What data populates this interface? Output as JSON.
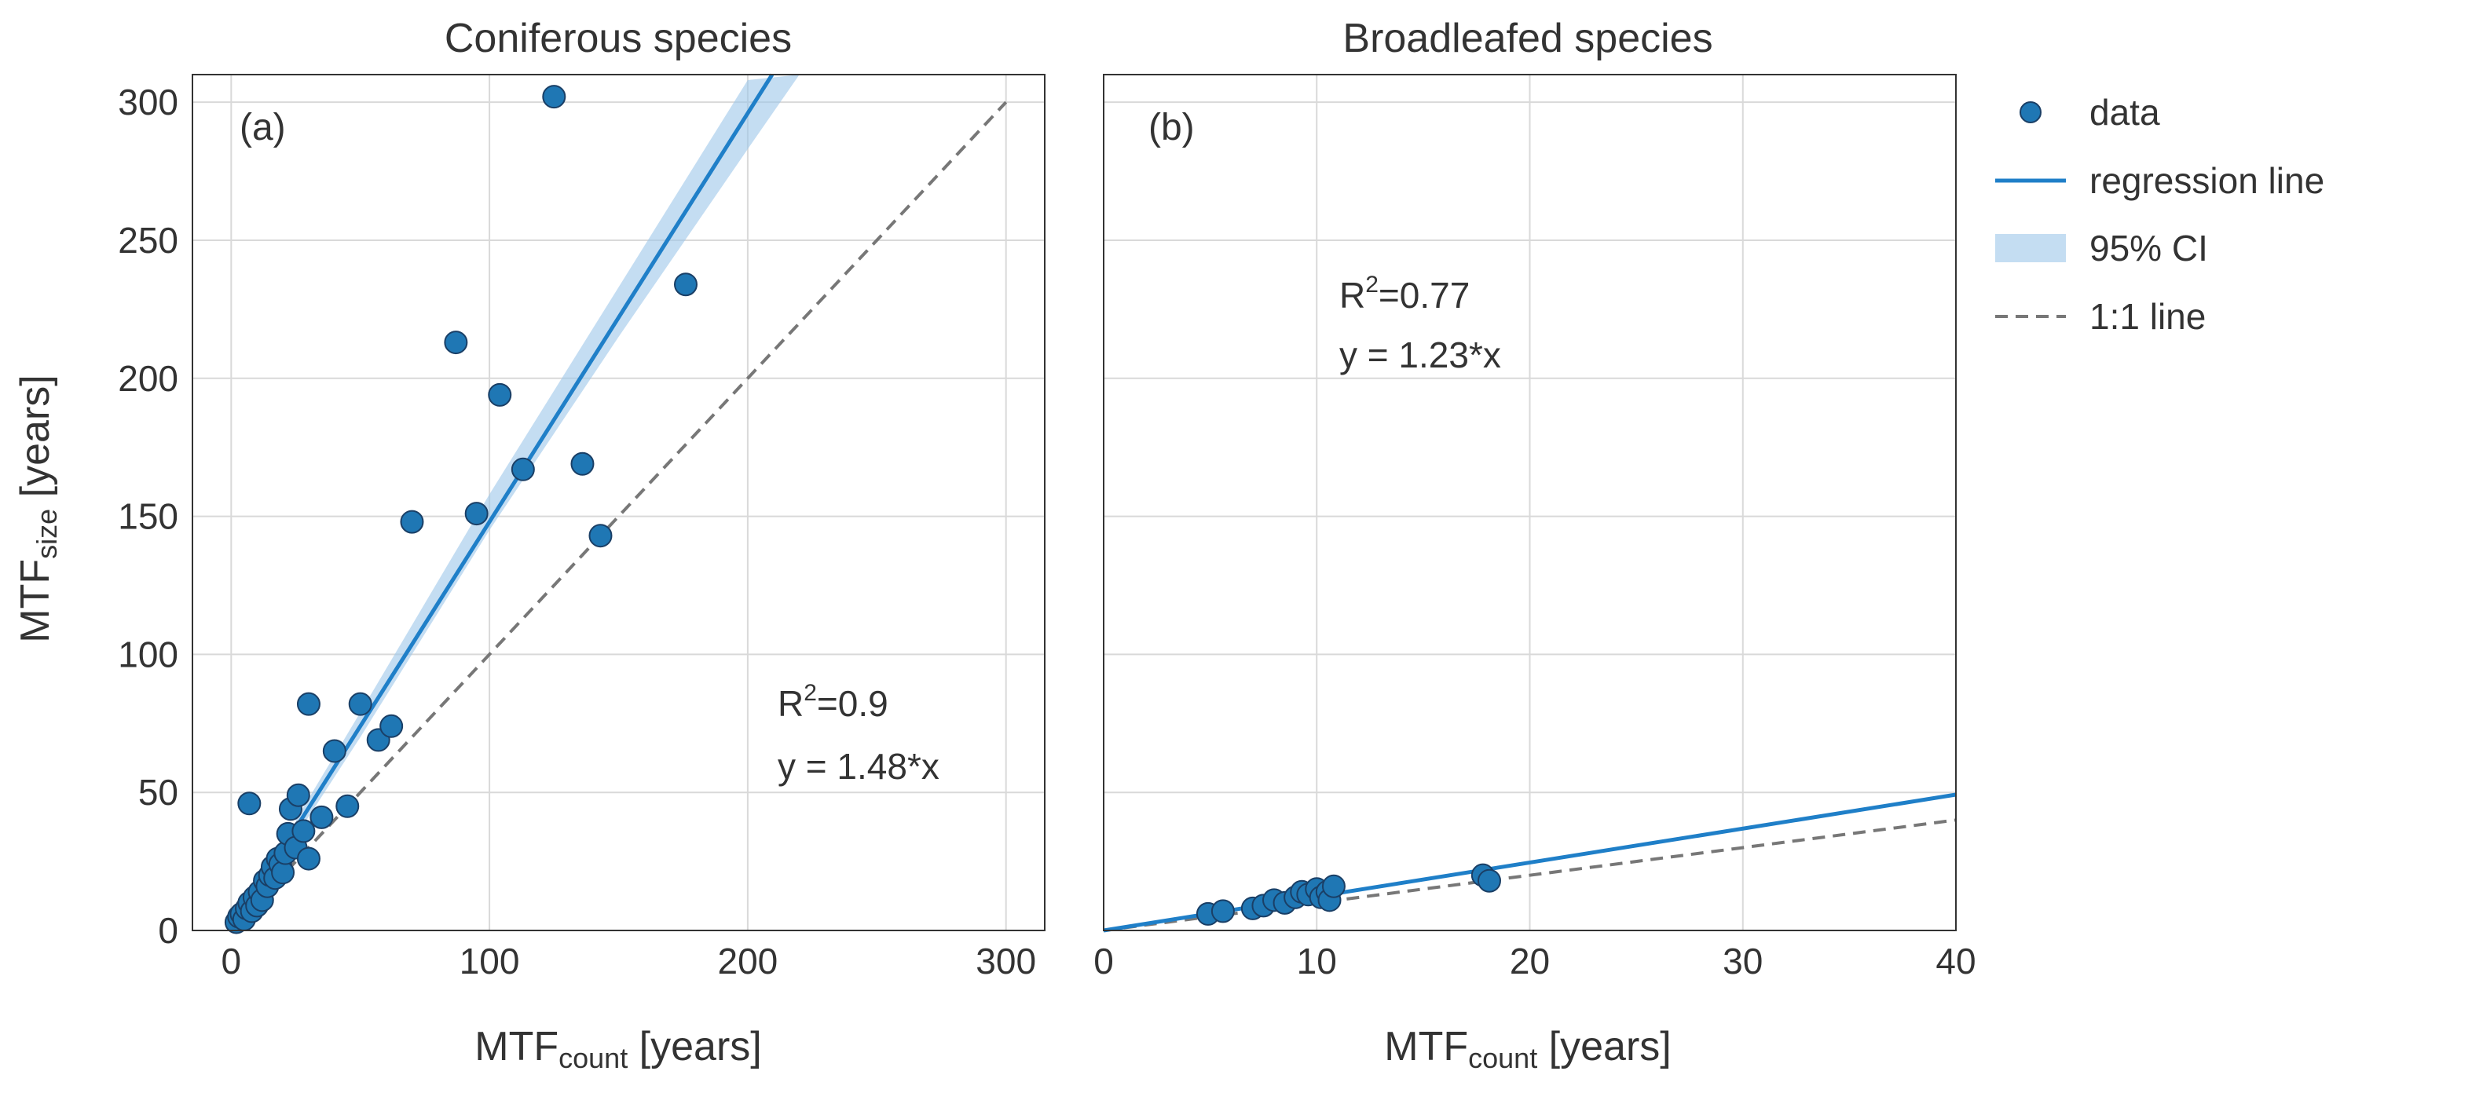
{
  "colors": {
    "point": "#1f77b4",
    "point_edge": "#1a3f66",
    "line": "#1f7fc8",
    "ci": "#9cc6ea",
    "one_to_one": "#777777",
    "grid": "#d9d9d9",
    "frame": "#333333",
    "text": "#333333"
  },
  "legend": {
    "placement": "right",
    "items": [
      {
        "key": "data",
        "label": "data",
        "kind": "marker"
      },
      {
        "key": "regression",
        "label": "regression line",
        "kind": "line"
      },
      {
        "key": "ci",
        "label": "95% CI",
        "kind": "patch"
      },
      {
        "key": "one_to_one",
        "label": "1:1 line",
        "kind": "dashed"
      }
    ]
  },
  "chart_data": [
    {
      "type": "scatter",
      "title": "Coniferous species",
      "panel_label": "(a)",
      "xlabel": {
        "main": "MTF",
        "sub": "count",
        "unit": " [years]"
      },
      "ylabel": {
        "main": "MTF",
        "sub": "size",
        "unit": " [years]"
      },
      "xlim": [
        -15,
        315
      ],
      "ylim": [
        0,
        310
      ],
      "xticks": [
        0,
        100,
        200,
        300
      ],
      "yticks": [
        0,
        50,
        100,
        150,
        200,
        250,
        300
      ],
      "grid": true,
      "annotation": {
        "r2_prefix": "R",
        "r2_sup": "2",
        "r2_value": "=0.9",
        "equation": "y = 1.48*x"
      },
      "regression": {
        "slope": 1.48,
        "x_end": 210,
        "ci_x": [
          25,
          50,
          100,
          150,
          200,
          220
        ],
        "ci_low": [
          34,
          70,
          145,
          215,
          283,
          310
        ],
        "ci_high": [
          40,
          79,
          158,
          233,
          308,
          330
        ]
      },
      "one_to_one": {
        "x_start": 0,
        "x_end": 300
      },
      "points": [
        {
          "x": 2,
          "y": 3
        },
        {
          "x": 3,
          "y": 5
        },
        {
          "x": 4,
          "y": 6
        },
        {
          "x": 5,
          "y": 4
        },
        {
          "x": 6,
          "y": 8
        },
        {
          "x": 7,
          "y": 10
        },
        {
          "x": 8,
          "y": 7
        },
        {
          "x": 9,
          "y": 12
        },
        {
          "x": 10,
          "y": 9
        },
        {
          "x": 11,
          "y": 14
        },
        {
          "x": 12,
          "y": 11
        },
        {
          "x": 13,
          "y": 18
        },
        {
          "x": 14,
          "y": 16
        },
        {
          "x": 15,
          "y": 20
        },
        {
          "x": 16,
          "y": 23
        },
        {
          "x": 17,
          "y": 19
        },
        {
          "x": 18,
          "y": 26
        },
        {
          "x": 19,
          "y": 24
        },
        {
          "x": 20,
          "y": 21
        },
        {
          "x": 21,
          "y": 28
        },
        {
          "x": 22,
          "y": 35
        },
        {
          "x": 23,
          "y": 44
        },
        {
          "x": 25,
          "y": 30
        },
        {
          "x": 26,
          "y": 49
        },
        {
          "x": 28,
          "y": 36
        },
        {
          "x": 30,
          "y": 26
        },
        {
          "x": 30,
          "y": 82
        },
        {
          "x": 35,
          "y": 41
        },
        {
          "x": 40,
          "y": 65
        },
        {
          "x": 45,
          "y": 45
        },
        {
          "x": 50,
          "y": 82
        },
        {
          "x": 57,
          "y": 69
        },
        {
          "x": 62,
          "y": 74
        },
        {
          "x": 7,
          "y": 46
        },
        {
          "x": 70,
          "y": 148
        },
        {
          "x": 87,
          "y": 213
        },
        {
          "x": 95,
          "y": 151
        },
        {
          "x": 104,
          "y": 194
        },
        {
          "x": 113,
          "y": 167
        },
        {
          "x": 125,
          "y": 302
        },
        {
          "x": 136,
          "y": 169
        },
        {
          "x": 143,
          "y": 143
        },
        {
          "x": 176,
          "y": 234
        }
      ]
    },
    {
      "type": "scatter",
      "title": "Broadleafed species",
      "panel_label": "(b)",
      "xlabel": {
        "main": "MTF",
        "sub": "count",
        "unit": " [years]"
      },
      "xlim": [
        0,
        40
      ],
      "ylim": [
        0,
        310
      ],
      "xticks": [
        0,
        10,
        20,
        30,
        40
      ],
      "yticks": [
        0,
        50,
        100,
        150,
        200,
        250,
        300
      ],
      "grid": true,
      "annotation": {
        "r2_prefix": "R",
        "r2_sup": "2",
        "r2_value": "=0.77",
        "equation": "y = 1.23*x"
      },
      "regression": {
        "slope": 1.23,
        "x_end": 40
      },
      "one_to_one": {
        "x_start": 0,
        "x_end": 40
      },
      "points": [
        {
          "x": 4.9,
          "y": 6
        },
        {
          "x": 5.6,
          "y": 7
        },
        {
          "x": 7.0,
          "y": 8
        },
        {
          "x": 7.5,
          "y": 9
        },
        {
          "x": 8.0,
          "y": 11
        },
        {
          "x": 8.5,
          "y": 10
        },
        {
          "x": 9.0,
          "y": 12
        },
        {
          "x": 9.3,
          "y": 14
        },
        {
          "x": 9.6,
          "y": 13
        },
        {
          "x": 10.0,
          "y": 15
        },
        {
          "x": 10.2,
          "y": 12
        },
        {
          "x": 10.5,
          "y": 14
        },
        {
          "x": 10.6,
          "y": 11
        },
        {
          "x": 10.8,
          "y": 16
        },
        {
          "x": 17.8,
          "y": 20
        },
        {
          "x": 18.1,
          "y": 18
        }
      ]
    }
  ]
}
